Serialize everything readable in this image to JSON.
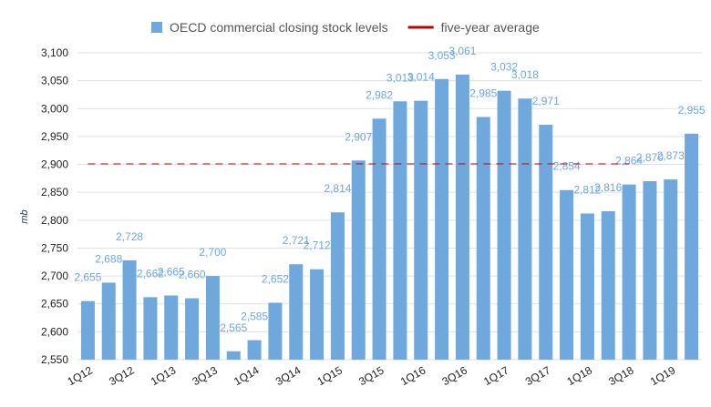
{
  "chart_data": {
    "type": "bar",
    "y_label": "mb",
    "categories": [
      "1Q12",
      null,
      "3Q12",
      null,
      "1Q13",
      null,
      "3Q13",
      null,
      "1Q14",
      null,
      "3Q14",
      null,
      "1Q15",
      null,
      "3Q15",
      null,
      "1Q16",
      null,
      "3Q16",
      null,
      "1Q17",
      null,
      "3Q17",
      null,
      "1Q18",
      null,
      "3Q18",
      null,
      "1Q19",
      null
    ],
    "series": [
      {
        "name": "OECD commercial closing stock levels",
        "color": "#6fa8dc",
        "values": [
          2655,
          2688,
          2728,
          2662,
          2665,
          2660,
          2700,
          2565,
          2585,
          2652,
          2721,
          2712,
          2814,
          2907,
          2982,
          3013,
          3014,
          3053,
          3061,
          2985,
          3032,
          3018,
          2971,
          2854,
          2812,
          2816,
          2864,
          2870,
          2873,
          2955
        ],
        "value_labels": [
          "2,655",
          "2,688",
          "2,728",
          "2,662",
          "2,665",
          "2,660",
          "2,700",
          "2,565",
          "2,585",
          "2,652",
          "2,721",
          "2,712",
          "2,814",
          "2,907",
          "2,982",
          "3,013",
          "3,014",
          "3,053",
          "3,061",
          "2,985",
          "3,032",
          "3,018",
          "2,971",
          "2,854",
          "2,812",
          "2,816",
          "2,864",
          "2,870",
          "2,873",
          "2,955"
        ]
      },
      {
        "name": "five-year average",
        "type": "line",
        "color": "#c00000",
        "values": [
          2901,
          2901,
          2901,
          2901,
          2901,
          2901,
          2901,
          2901,
          2901,
          2901,
          2901,
          2901,
          2901,
          2901,
          2901,
          2901,
          2901,
          2901,
          2901,
          2901,
          2901,
          2901,
          2901,
          2901,
          2901,
          2901,
          2901,
          null,
          null,
          null
        ]
      }
    ],
    "ylim": [
      2550,
      3100
    ],
    "yticks": [
      {
        "value": 2550,
        "label": "2,550"
      },
      {
        "value": 2600,
        "label": "2,600"
      },
      {
        "value": 2650,
        "label": "2,650"
      },
      {
        "value": 2700,
        "label": "2,700"
      },
      {
        "value": 2750,
        "label": "2,750"
      },
      {
        "value": 2800,
        "label": "2,800"
      },
      {
        "value": 2850,
        "label": "2,850"
      },
      {
        "value": 2900,
        "label": "2,900"
      },
      {
        "value": 2950,
        "label": "2,950"
      },
      {
        "value": 3000,
        "label": "3,000"
      },
      {
        "value": 3050,
        "label": "3,050"
      },
      {
        "value": 3100,
        "label": "3,100"
      }
    ],
    "grid": true,
    "legend": "top"
  }
}
